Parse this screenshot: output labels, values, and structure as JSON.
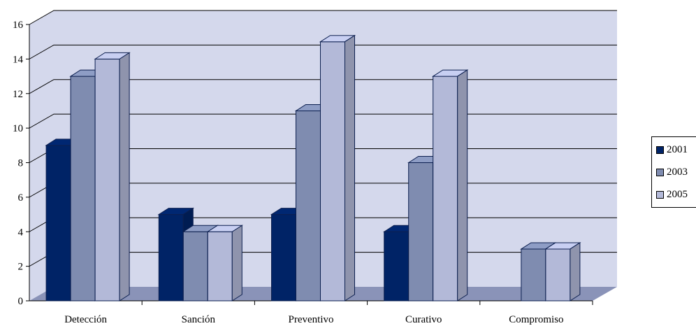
{
  "chart_data": {
    "type": "bar",
    "categories": [
      "Detección",
      "Sanción",
      "Preventivo",
      "Curativo",
      "Compromiso"
    ],
    "series": [
      {
        "name": "2001",
        "values": [
          9,
          5,
          5,
          4,
          null
        ],
        "color": "#002366"
      },
      {
        "name": "2003",
        "values": [
          13,
          4,
          11,
          8,
          3
        ],
        "color": "#7f8cb0"
      },
      {
        "name": "2005",
        "values": [
          14,
          4,
          15,
          13,
          3
        ],
        "color": "#b3b9d8"
      }
    ],
    "title": "",
    "xlabel": "",
    "ylabel": "",
    "ylim": [
      0,
      16
    ],
    "yticks": [
      0,
      2,
      4,
      6,
      8,
      10,
      12,
      14,
      16
    ],
    "grid": true,
    "legend_position": "right",
    "style": "3d-clustered-bar",
    "colors": {
      "wall": "#d4d8ec",
      "floor": "#8a93b8",
      "gridline": "#000000",
      "outline": "#0c1f4f"
    }
  }
}
